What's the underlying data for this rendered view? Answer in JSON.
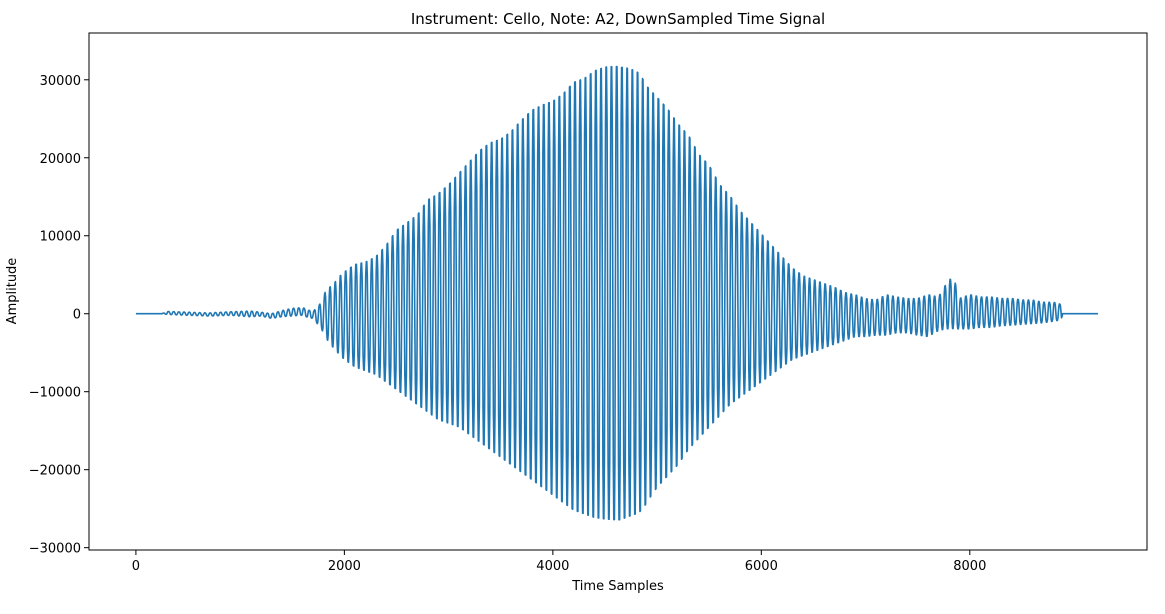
{
  "chart_data": {
    "type": "line",
    "title": "Instrument: Cello, Note: A2, DownSampled Time Signal",
    "xlabel": "Time Samples",
    "ylabel": "Amplitude",
    "xlim": [
      -450,
      9700
    ],
    "ylim": [
      -30300,
      36000
    ],
    "xticks": [
      0,
      2000,
      4000,
      6000,
      8000
    ],
    "xtick_labels": [
      "0",
      "2000",
      "4000",
      "6000",
      "8000"
    ],
    "yticks": [
      -30000,
      -20000,
      -10000,
      0,
      10000,
      20000,
      30000
    ],
    "ytick_labels": [
      "−30000",
      "−20000",
      "−10000",
      "0",
      "10000",
      "20000",
      "30000"
    ],
    "grid": false,
    "line_color": "#1f77b4",
    "series": [
      {
        "x": [
          0,
          250,
          300,
          500,
          700,
          900,
          1100,
          1200,
          1300,
          1400,
          1500,
          1600,
          1650,
          1700,
          1780,
          1820,
          1860,
          1900,
          1960,
          2000,
          2100,
          2200,
          2300,
          2400,
          2500,
          2600,
          2700,
          2800,
          2900,
          3000,
          3100,
          3200,
          3300,
          3400,
          3500,
          3600,
          3700,
          3800,
          3900,
          4000,
          4100,
          4200,
          4300,
          4400,
          4500,
          4600,
          4650,
          4700,
          4800,
          4860,
          4900,
          5000,
          5100,
          5200,
          5300,
          5400,
          5500,
          5600,
          5700,
          5800,
          5900,
          6000,
          6100,
          6200,
          6300,
          6400,
          6500,
          6600,
          6700,
          6800,
          6900,
          7000,
          7100,
          7200,
          7300,
          7400,
          7500,
          7600,
          7700,
          7800,
          7850,
          7900,
          8000,
          8100,
          8200,
          8300,
          8400,
          8500,
          8600,
          8700,
          8800,
          8880,
          8890,
          9000,
          9100,
          9230
        ],
        "envelope_high": [
          0,
          0,
          300,
          200,
          100,
          250,
          350,
          200,
          0,
          400,
          700,
          800,
          500,
          300,
          1500,
          3000,
          3500,
          4000,
          5000,
          5500,
          6500,
          6800,
          7500,
          9000,
          11000,
          12000,
          13000,
          15000,
          15800,
          17000,
          18500,
          20000,
          21500,
          22500,
          23000,
          24000,
          25500,
          26800,
          27500,
          28000,
          29000,
          30500,
          31000,
          32000,
          32500,
          32600,
          32500,
          32400,
          32000,
          31000,
          30000,
          28500,
          27000,
          25000,
          23500,
          21000,
          19500,
          17000,
          15500,
          13500,
          12000,
          10500,
          9000,
          7500,
          6000,
          5000,
          4500,
          4000,
          3500,
          2800,
          2500,
          2000,
          1800,
          2500,
          2200,
          2000,
          2000,
          2500,
          2200,
          4500,
          4500,
          2000,
          2500,
          2200,
          2200,
          2000,
          2000,
          1800,
          1800,
          1500,
          1500,
          1200,
          0,
          0,
          0,
          0
        ],
        "envelope_low": [
          0,
          0,
          -100,
          -200,
          -300,
          -200,
          -400,
          -300,
          -600,
          -400,
          -300,
          -200,
          -500,
          -600,
          -2000,
          -3000,
          -4000,
          -4500,
          -5500,
          -6000,
          -7000,
          -7500,
          -8000,
          -9000,
          -10000,
          -11000,
          -12000,
          -13000,
          -14000,
          -14500,
          -15000,
          -16000,
          -17000,
          -18000,
          -19000,
          -20000,
          -21000,
          -22000,
          -23000,
          -24000,
          -25000,
          -26000,
          -26500,
          -27000,
          -27200,
          -27300,
          -27300,
          -27000,
          -26500,
          -26000,
          -25000,
          -23000,
          -21500,
          -20000,
          -18000,
          -16500,
          -15000,
          -13500,
          -12000,
          -11000,
          -10000,
          -9000,
          -8000,
          -7000,
          -6000,
          -5500,
          -5000,
          -4500,
          -4000,
          -3500,
          -3000,
          -3000,
          -2800,
          -2800,
          -2500,
          -2500,
          -2800,
          -3000,
          -2200,
          -2000,
          -2000,
          -2000,
          -2000,
          -1800,
          -1800,
          -1600,
          -1500,
          -1400,
          -1300,
          -1200,
          -1000,
          -800,
          0,
          0,
          0,
          0
        ]
      }
    ]
  }
}
